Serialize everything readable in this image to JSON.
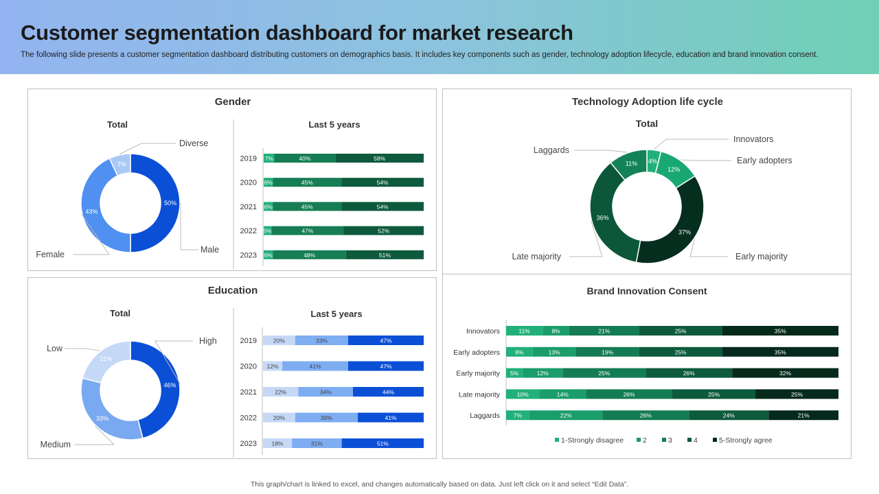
{
  "header": {
    "title": "Customer segmentation dashboard for market research",
    "subtitle": "The following slide presents a customer segmentation dashboard distributing customers on demographics basis. It includes key components such as gender, technology adoption lifecycle, education and brand innovation consent."
  },
  "footer": "This graph/chart is linked to excel, and changes automatically based on data. Just left click on it and select “Edit Data”.",
  "chart_data": [
    {
      "id": "gender-total",
      "type": "pie",
      "panel_title": "Gender",
      "title": "Total",
      "categories": [
        "Male",
        "Female",
        "Diverse"
      ],
      "values": [
        50,
        43,
        7
      ],
      "labels": [
        "50%",
        "43%",
        "7%"
      ],
      "colors": [
        "#0b4fd6",
        "#4f90f0",
        "#a9c9f5"
      ]
    },
    {
      "id": "gender-years",
      "type": "bar",
      "orientation": "horizontal",
      "stacked": true,
      "title": "Last 5 years",
      "categories": [
        "2019",
        "2020",
        "2021",
        "2022",
        "2023"
      ],
      "series": [
        {
          "values": [
            7,
            6,
            6,
            5,
            6
          ],
          "labels": [
            "7%",
            "6%",
            "6%",
            "5%",
            "6%"
          ],
          "color": "#22b07a"
        },
        {
          "values": [
            40,
            45,
            45,
            47,
            48
          ],
          "labels": [
            "40%",
            "45%",
            "45%",
            "47%",
            "48%"
          ],
          "color": "#167d55"
        },
        {
          "values": [
            58,
            54,
            54,
            52,
            51
          ],
          "labels": [
            "58%",
            "54%",
            "54%",
            "52%",
            "51%"
          ],
          "color": "#0d5a3c"
        }
      ]
    },
    {
      "id": "tech-total",
      "type": "pie",
      "panel_title": "Technology Adoption life cycle",
      "title": "Total",
      "categories": [
        "Innovators",
        "Early adopters",
        "Early majority",
        "Late majority",
        "Laggards"
      ],
      "values": [
        4,
        12,
        37,
        36,
        11
      ],
      "labels": [
        "4%",
        "12%",
        "37%",
        "36%",
        "11%"
      ],
      "colors": [
        "#22b07a",
        "#1aa872",
        "#062e1f",
        "#0c573a",
        "#13825a"
      ]
    },
    {
      "id": "education-total",
      "type": "pie",
      "panel_title": "Education",
      "title": "Total",
      "categories": [
        "High",
        "Medium",
        "Low"
      ],
      "values": [
        46,
        33,
        21
      ],
      "labels": [
        "46%",
        "33%",
        "21%"
      ],
      "colors": [
        "#0b4fd6",
        "#79a9f1",
        "#c5d9f7"
      ]
    },
    {
      "id": "education-years",
      "type": "bar",
      "orientation": "horizontal",
      "stacked": true,
      "title": "Last 5 years",
      "categories": [
        "2019",
        "2020",
        "2021",
        "2022",
        "2023"
      ],
      "series": [
        {
          "values": [
            20,
            12,
            22,
            20,
            18
          ],
          "labels": [
            "20%",
            "12%",
            "22%",
            "20%",
            "18%"
          ],
          "color": "#c5d9f7"
        },
        {
          "values": [
            33,
            41,
            34,
            39,
            31
          ],
          "labels": [
            "33%",
            "41%",
            "34%",
            "39%",
            "31%"
          ],
          "color": "#7eadf2"
        },
        {
          "values": [
            47,
            47,
            44,
            41,
            51
          ],
          "labels": [
            "47%",
            "47%",
            "44%",
            "41%",
            "51%"
          ],
          "color": "#0b4fd6"
        }
      ]
    },
    {
      "id": "brand-consent",
      "type": "bar",
      "orientation": "horizontal",
      "stacked": true,
      "title": "Brand Innovation Consent",
      "categories": [
        "Innovators",
        "Early adopters",
        "Early majority",
        "Late majority",
        "Laggards"
      ],
      "series": [
        {
          "name": "1-Strongly disagree",
          "values": [
            11,
            8,
            5,
            10,
            7
          ],
          "labels": [
            "11%",
            "8%",
            "5%",
            "10%",
            "7%"
          ],
          "color": "#22b07a"
        },
        {
          "name": "2",
          "values": [
            8,
            13,
            12,
            14,
            22
          ],
          "labels": [
            "8%",
            "13%",
            "12%",
            "14%",
            "22%"
          ],
          "color": "#1a9d6a"
        },
        {
          "name": "3",
          "values": [
            21,
            19,
            25,
            26,
            26
          ],
          "labels": [
            "21%",
            "19%",
            "25%",
            "26%",
            "26%"
          ],
          "color": "#147c54"
        },
        {
          "name": "4",
          "values": [
            25,
            25,
            26,
            25,
            24
          ],
          "labels": [
            "25%",
            "25%",
            "26%",
            "25%",
            "24%"
          ],
          "color": "#0d5a3d"
        },
        {
          "name": "5-Strongly agree",
          "values": [
            35,
            35,
            32,
            25,
            21
          ],
          "labels": [
            "35%",
            "35%",
            "32%",
            "25%",
            "21%"
          ],
          "color": "#052a1c"
        }
      ],
      "legend": "bottom"
    }
  ]
}
